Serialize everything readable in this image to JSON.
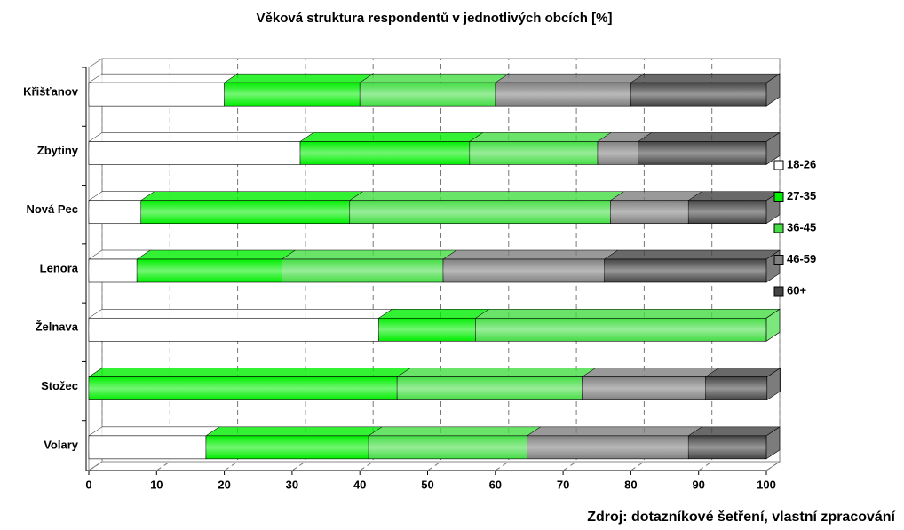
{
  "chart_data": {
    "type": "stacked_barh_3d",
    "title": "Věková struktura respondentů v jednotlivých obcích [%]",
    "source": "Zdroj: dotazníkové šetření, vlastní zpracování",
    "categories": [
      "Křišťanov",
      "Zbytiny",
      "Nová Pec",
      "Lenora",
      "Želnava",
      "Stožec",
      "Volary"
    ],
    "series": [
      {
        "name": "18-26",
        "color": "#ffffff",
        "values": [
          20,
          31.2,
          7.7,
          7.1,
          42.8,
          0,
          17.3
        ]
      },
      {
        "name": "27-35",
        "color": "#00ee00",
        "values": [
          20,
          25,
          30.8,
          21.4,
          14.3,
          45.5,
          24
        ]
      },
      {
        "name": "36-45",
        "color": "#44dd44",
        "values": [
          20,
          18.9,
          38.5,
          23.8,
          42.9,
          27.3,
          23.4
        ]
      },
      {
        "name": "46-59",
        "color": "#808080",
        "values": [
          20,
          6,
          11.5,
          23.8,
          0,
          18.2,
          23.8
        ]
      },
      {
        "name": "60+",
        "color": "#444444",
        "values": [
          20,
          18.9,
          11.5,
          23.9,
          0,
          9.1,
          11.5
        ]
      }
    ],
    "xlim": [
      0,
      100
    ],
    "xticks": [
      0,
      10,
      20,
      30,
      40,
      50,
      60,
      70,
      80,
      90,
      100
    ],
    "grid": true,
    "legend": "right"
  }
}
